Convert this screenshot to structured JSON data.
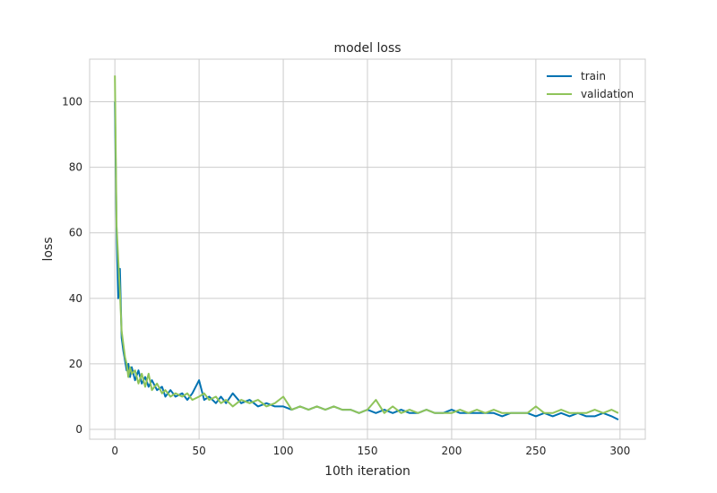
{
  "chart_data": {
    "type": "line",
    "title": "model loss",
    "xlabel": "10th iteration",
    "ylabel": "loss",
    "xlim": [
      -15,
      315
    ],
    "ylim": [
      -3,
      113
    ],
    "xticks": [
      0,
      50,
      100,
      150,
      200,
      250,
      300
    ],
    "yticks": [
      0,
      20,
      40,
      60,
      80,
      100
    ],
    "grid": true,
    "legend_position": "top-right",
    "series": [
      {
        "name": "train",
        "color": "#0072b2",
        "points": [
          [
            0,
            100
          ],
          [
            1,
            60
          ],
          [
            2,
            40
          ],
          [
            3,
            49
          ],
          [
            4,
            28
          ],
          [
            5,
            24
          ],
          [
            6,
            21
          ],
          [
            7,
            18
          ],
          [
            8,
            20
          ],
          [
            9,
            16
          ],
          [
            10,
            19
          ],
          [
            12,
            15
          ],
          [
            14,
            18
          ],
          [
            16,
            14
          ],
          [
            18,
            16
          ],
          [
            20,
            13
          ],
          [
            22,
            15
          ],
          [
            25,
            12
          ],
          [
            28,
            13
          ],
          [
            30,
            10
          ],
          [
            33,
            12
          ],
          [
            36,
            10
          ],
          [
            40,
            11
          ],
          [
            43,
            9
          ],
          [
            46,
            11
          ],
          [
            50,
            15
          ],
          [
            53,
            9
          ],
          [
            56,
            10
          ],
          [
            60,
            8
          ],
          [
            63,
            10
          ],
          [
            66,
            8
          ],
          [
            70,
            11
          ],
          [
            75,
            8
          ],
          [
            80,
            9
          ],
          [
            85,
            7
          ],
          [
            90,
            8
          ],
          [
            95,
            7
          ],
          [
            100,
            7
          ],
          [
            105,
            6
          ],
          [
            110,
            7
          ],
          [
            115,
            6
          ],
          [
            120,
            7
          ],
          [
            125,
            6
          ],
          [
            130,
            7
          ],
          [
            135,
            6
          ],
          [
            140,
            6
          ],
          [
            145,
            5
          ],
          [
            150,
            6
          ],
          [
            155,
            5
          ],
          [
            160,
            6
          ],
          [
            165,
            5
          ],
          [
            170,
            6
          ],
          [
            175,
            5
          ],
          [
            180,
            5
          ],
          [
            185,
            6
          ],
          [
            190,
            5
          ],
          [
            195,
            5
          ],
          [
            200,
            6
          ],
          [
            205,
            5
          ],
          [
            210,
            5
          ],
          [
            215,
            5
          ],
          [
            220,
            5
          ],
          [
            225,
            5
          ],
          [
            230,
            4
          ],
          [
            235,
            5
          ],
          [
            240,
            5
          ],
          [
            245,
            5
          ],
          [
            250,
            4
          ],
          [
            255,
            5
          ],
          [
            260,
            4
          ],
          [
            265,
            5
          ],
          [
            270,
            4
          ],
          [
            275,
            5
          ],
          [
            280,
            4
          ],
          [
            285,
            4
          ],
          [
            290,
            5
          ],
          [
            295,
            4
          ],
          [
            299,
            3
          ]
        ]
      },
      {
        "name": "validation",
        "color": "#8fc45a",
        "points": [
          [
            0,
            108
          ],
          [
            1,
            62
          ],
          [
            2,
            52
          ],
          [
            3,
            42
          ],
          [
            4,
            30
          ],
          [
            5,
            26
          ],
          [
            6,
            22
          ],
          [
            7,
            20
          ],
          [
            8,
            16
          ],
          [
            9,
            19
          ],
          [
            10,
            17
          ],
          [
            12,
            18
          ],
          [
            14,
            14
          ],
          [
            16,
            17
          ],
          [
            18,
            13
          ],
          [
            20,
            17
          ],
          [
            22,
            12
          ],
          [
            25,
            14
          ],
          [
            28,
            11
          ],
          [
            30,
            12
          ],
          [
            33,
            10
          ],
          [
            36,
            11
          ],
          [
            40,
            10
          ],
          [
            43,
            11
          ],
          [
            46,
            9
          ],
          [
            50,
            10
          ],
          [
            53,
            11
          ],
          [
            56,
            9
          ],
          [
            60,
            10
          ],
          [
            63,
            8
          ],
          [
            66,
            9
          ],
          [
            70,
            7
          ],
          [
            75,
            9
          ],
          [
            80,
            8
          ],
          [
            85,
            9
          ],
          [
            90,
            7
          ],
          [
            95,
            8
          ],
          [
            100,
            10
          ],
          [
            105,
            6
          ],
          [
            110,
            7
          ],
          [
            115,
            6
          ],
          [
            120,
            7
          ],
          [
            125,
            6
          ],
          [
            130,
            7
          ],
          [
            135,
            6
          ],
          [
            140,
            6
          ],
          [
            145,
            5
          ],
          [
            150,
            6
          ],
          [
            155,
            9
          ],
          [
            160,
            5
          ],
          [
            165,
            7
          ],
          [
            170,
            5
          ],
          [
            175,
            6
          ],
          [
            180,
            5
          ],
          [
            185,
            6
          ],
          [
            190,
            5
          ],
          [
            195,
            5
          ],
          [
            200,
            5
          ],
          [
            205,
            6
          ],
          [
            210,
            5
          ],
          [
            215,
            6
          ],
          [
            220,
            5
          ],
          [
            225,
            6
          ],
          [
            230,
            5
          ],
          [
            235,
            5
          ],
          [
            240,
            5
          ],
          [
            245,
            5
          ],
          [
            250,
            7
          ],
          [
            255,
            5
          ],
          [
            260,
            5
          ],
          [
            265,
            6
          ],
          [
            270,
            5
          ],
          [
            275,
            5
          ],
          [
            280,
            5
          ],
          [
            285,
            6
          ],
          [
            290,
            5
          ],
          [
            295,
            6
          ],
          [
            299,
            5
          ]
        ]
      }
    ]
  }
}
